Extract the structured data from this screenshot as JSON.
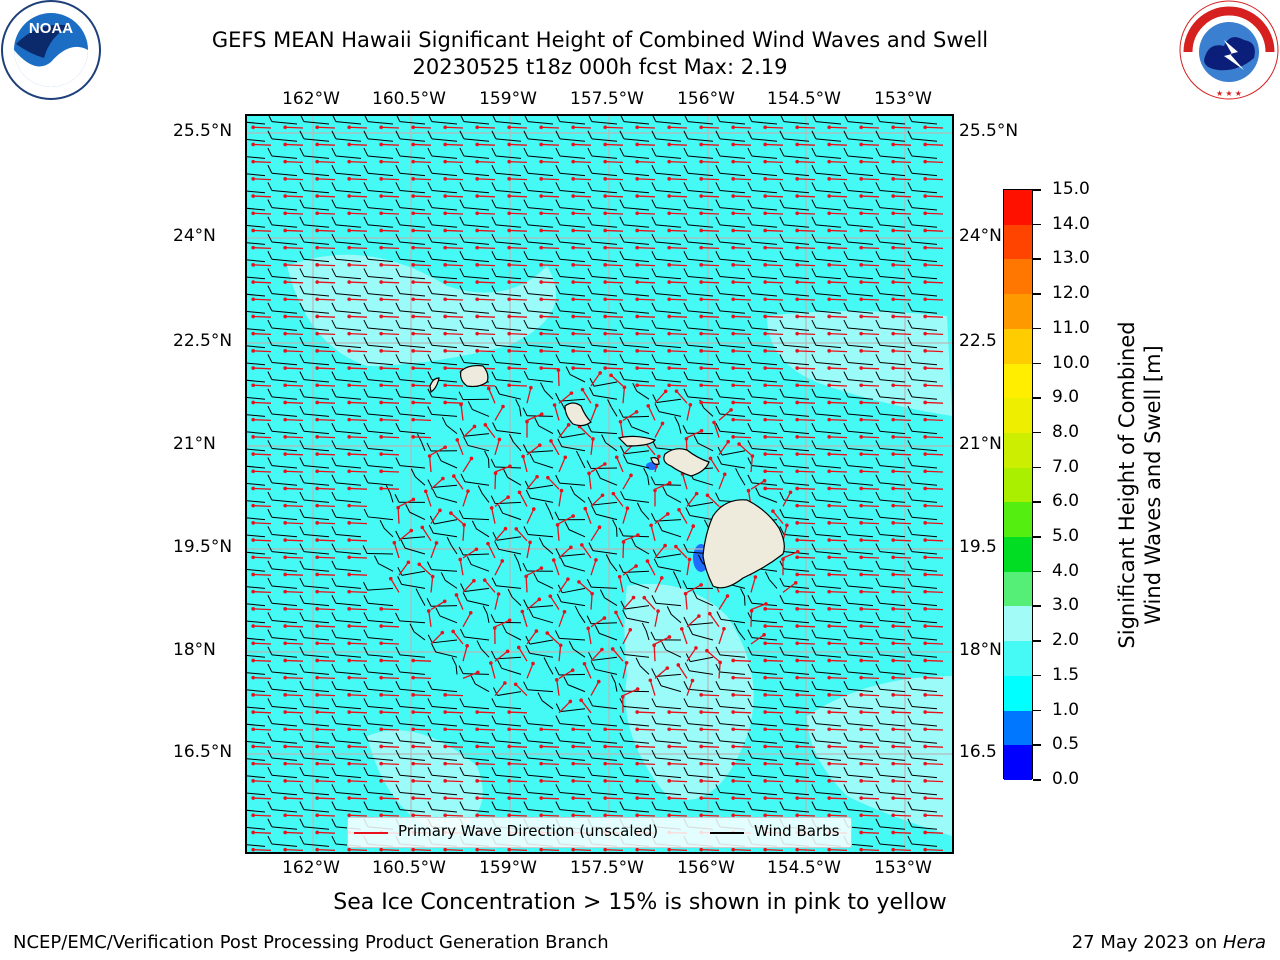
{
  "title": {
    "line1": "GEFS MEAN Hawaii Significant Height of Combined Wind Waves and Swell",
    "line2": "20230525 t18z 000h fcst   Max: 2.19"
  },
  "logos": {
    "left": {
      "icon": "noaa-logo",
      "text": "NOAA"
    },
    "right": {
      "icon": "nws-logo",
      "text": "NATIONAL WEATHER SERVICE"
    }
  },
  "map": {
    "lon_ticks": [
      "162°W",
      "160.5°W",
      "159°W",
      "157.5°W",
      "156°W",
      "154.5°W",
      "153°W"
    ],
    "lat_ticks_left": [
      "25.5°N",
      "24°N",
      "22.5°N",
      "21°N",
      "19.5°N",
      "18°N",
      "16.5°N"
    ],
    "lat_ticks_right": [
      "25.5°N",
      "24°N",
      "22.5",
      "21°N",
      "19.5",
      "18°N",
      "16.5"
    ],
    "colors": {
      "water": "#45f9f5",
      "light_water": "#a3fbf8",
      "land": "#efebdc",
      "arrow": "#e8101a",
      "barb": "#000000",
      "grid": "#aaaaaa"
    }
  },
  "legend": {
    "primary_wave": "Primary Wave Direction (unscaled)",
    "wind_barbs": "Wind Barbs"
  },
  "colorbar": {
    "label_line1": "Significant Height of Combined",
    "label_line2": "Wind Waves and Swell [m]",
    "ticks": [
      "0.0",
      "0.5",
      "1.0",
      "1.5",
      "2.0",
      "3.0",
      "4.0",
      "5.0",
      "6.0",
      "7.0",
      "8.0",
      "9.0",
      "10.0",
      "11.0",
      "12.0",
      "13.0",
      "14.0",
      "15.0"
    ],
    "colors": [
      "#0000ff",
      "#0077ff",
      "#00ffff",
      "#45f9f5",
      "#a3fbf8",
      "#55ee77",
      "#00dd22",
      "#55ee11",
      "#aaee00",
      "#ccee00",
      "#eeee00",
      "#ffee00",
      "#ffcc00",
      "#ff9900",
      "#ff7700",
      "#ff4400",
      "#ff1100"
    ]
  },
  "footnote": "Sea Ice Concentration > 15% is shown in pink to yellow",
  "footer": {
    "left": "NCEP/EMC/Verification Post Processing Product Generation Branch",
    "right_prefix": "27 May 2023 on ",
    "right_italic": "Hera"
  }
}
